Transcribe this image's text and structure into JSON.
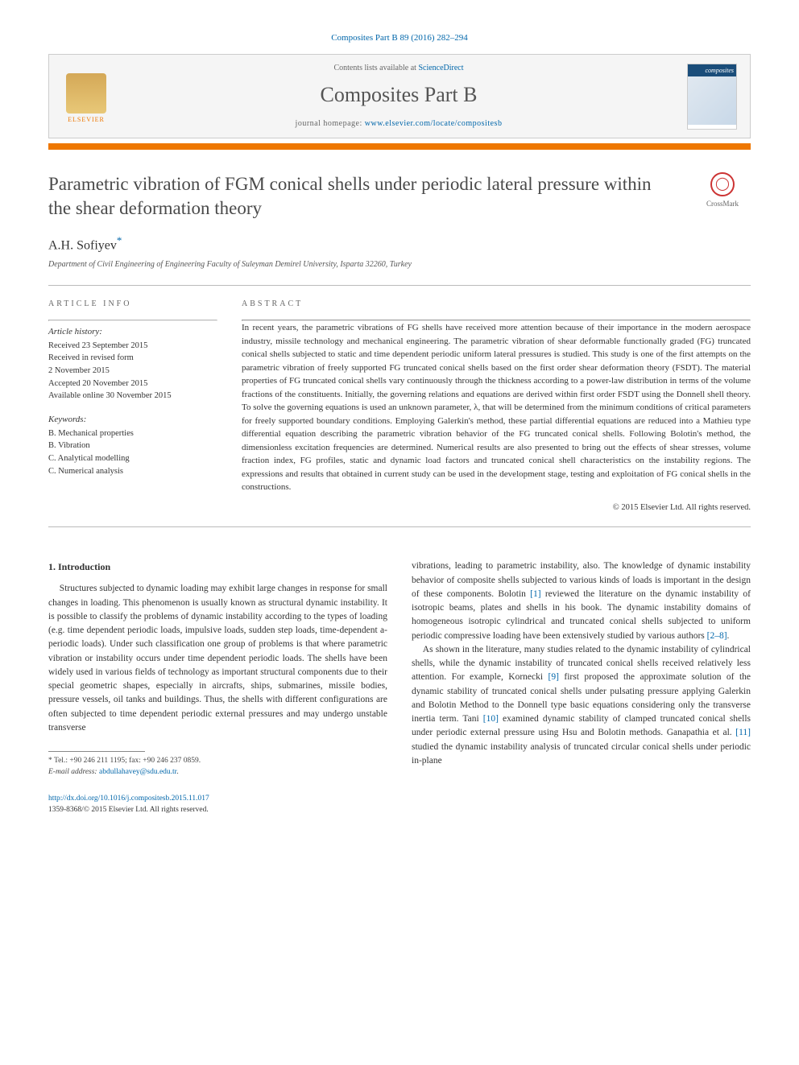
{
  "top_citation": "Composites Part B 89 (2016) 282–294",
  "header": {
    "contents_text": "Contents lists available at ",
    "contents_link": "ScienceDirect",
    "journal_name": "Composites Part B",
    "homepage_label": "journal homepage: ",
    "homepage_url": "www.elsevier.com/locate/compositesb",
    "publisher": "ELSEVIER",
    "cover_label": "composites"
  },
  "crossmark_label": "CrossMark",
  "title": "Parametric vibration of FGM conical shells under periodic lateral pressure within the shear deformation theory",
  "author": "A.H. Sofiyev",
  "author_marker": "*",
  "affiliation": "Department of Civil Engineering of Engineering Faculty of Suleyman Demirel University, Isparta 32260, Turkey",
  "article_info_header": "ARTICLE INFO",
  "abstract_header": "ABSTRACT",
  "history": {
    "label": "Article history:",
    "items": [
      "Received 23 September 2015",
      "Received in revised form",
      "2 November 2015",
      "Accepted 20 November 2015",
      "Available online 30 November 2015"
    ]
  },
  "keywords": {
    "label": "Keywords:",
    "items": [
      "B. Mechanical properties",
      "B. Vibration",
      "C. Analytical modelling",
      "C. Numerical analysis"
    ]
  },
  "abstract": "In recent years, the parametric vibrations of FG shells have received more attention because of their importance in the modern aerospace industry, missile technology and mechanical engineering. The parametric vibration of shear deformable functionally graded (FG) truncated conical shells subjected to static and time dependent periodic uniform lateral pressures is studied. This study is one of the first attempts on the parametric vibration of freely supported FG truncated conical shells based on the first order shear deformation theory (FSDT). The material properties of FG truncated conical shells vary continuously through the thickness according to a power-law distribution in terms of the volume fractions of the constituents. Initially, the governing relations and equations are derived within first order FSDT using the Donnell shell theory. To solve the governing equations is used an unknown parameter, λ, that will be determined from the minimum conditions of critical parameters for freely supported boundary conditions. Employing Galerkin's method, these partial differential equations are reduced into a Mathieu type differential equation describing the parametric vibration behavior of the FG truncated conical shells. Following Bolotin's method, the dimensionless excitation frequencies are determined. Numerical results are also presented to bring out the effects of shear stresses, volume fraction index, FG profiles, static and dynamic load factors and truncated conical shell characteristics on the instability regions. The expressions and results that obtained in current study can be used in the development stage, testing and exploitation of FG conical shells in the constructions.",
  "copyright": "© 2015 Elsevier Ltd. All rights reserved.",
  "intro_heading": "1. Introduction",
  "col1_p1": "Structures subjected to dynamic loading may exhibit large changes in response for small changes in loading. This phenomenon is usually known as structural dynamic instability. It is possible to classify the problems of dynamic instability according to the types of loading (e.g. time dependent periodic loads, impulsive loads, sudden step loads, time-dependent a-periodic loads). Under such classification one group of problems is that where parametric vibration or instability occurs under time dependent periodic loads. The shells have been widely used in various fields of technology as important structural components due to their special geometric shapes, especially in aircrafts, ships, submarines, missile bodies, pressure vessels, oil tanks and buildings. Thus, the shells with different configurations are often subjected to time dependent periodic external pressures and may undergo unstable transverse",
  "col2_p1_a": "vibrations, leading to parametric instability, also. The knowledge of dynamic instability behavior of composite shells subjected to various kinds of loads is important in the design of these components. Bolotin ",
  "ref1": "[1]",
  "col2_p1_b": " reviewed the literature on the dynamic instability of isotropic beams, plates and shells in his book. The dynamic instability domains of homogeneous isotropic cylindrical and truncated conical shells subjected to uniform periodic compressive loading have been extensively studied by various authors ",
  "ref28": "[2–8]",
  "col2_p1_c": ".",
  "col2_p2_a": "As shown in the literature, many studies related to the dynamic instability of cylindrical shells, while the dynamic instability of truncated conical shells received relatively less attention. For example, Kornecki ",
  "ref9": "[9]",
  "col2_p2_b": " first proposed the approximate solution of the dynamic stability of truncated conical shells under pulsating pressure applying Galerkin and Bolotin Method to the Donnell type basic equations considering only the transverse inertia term. Tani ",
  "ref10": "[10]",
  "col2_p2_c": " examined dynamic stability of clamped truncated conical shells under periodic external pressure using Hsu and Bolotin methods. Ganapathia et al. ",
  "ref11": "[11]",
  "col2_p2_d": " studied the dynamic instability analysis of truncated circular conical shells under periodic in-plane",
  "footnote": {
    "marker": "*",
    "tel": " Tel.: +90 246 211 1195; fax: +90 246 237 0859.",
    "email_label": "E-mail address:",
    "email": "abdullahavey@sdu.edu.tr"
  },
  "doi": {
    "url": "http://dx.doi.org/10.1016/j.compositesb.2015.11.017",
    "issn": "1359-8368/© 2015 Elsevier Ltd. All rights reserved."
  },
  "colors": {
    "link": "#0066aa",
    "orange": "#ee7700",
    "text": "#333333",
    "rule": "#bbbbbb"
  }
}
